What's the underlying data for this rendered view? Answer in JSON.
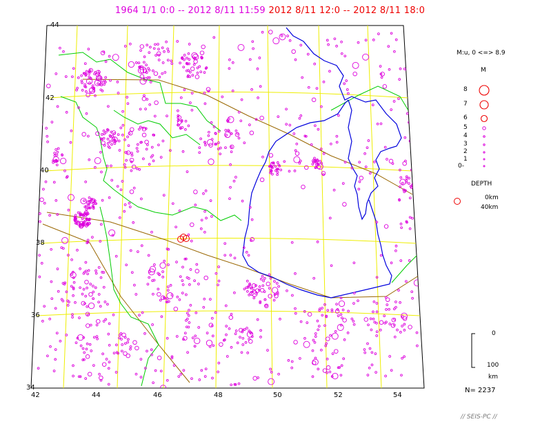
{
  "title": {
    "period_past": "1964 1/1 0:0 -- 2012 8/11 11:59",
    "period_recent": "2012 8/11 12:0 -- 2012 8/11 18:0"
  },
  "colors": {
    "past_events": "#dd00dd",
    "recent_events": "#ee0000",
    "grid": "#eeee00",
    "border_country": "#00cc00",
    "coastline": "#0000dd",
    "plate_boundary": "#996600"
  },
  "map": {
    "lat_labels": [
      "44",
      "42",
      "40",
      "38",
      "36",
      "34"
    ],
    "lon_labels": [
      "42",
      "44",
      "46",
      "48",
      "50",
      "52",
      "54"
    ]
  },
  "legend": {
    "magnitude_range": "M:u, 0 <=> 8.9",
    "magnitude_title": "M",
    "magnitudes": [
      "8",
      "7",
      "6",
      "5",
      "4",
      "3",
      "2",
      "1",
      "0-"
    ],
    "depth_title": "DEPTH",
    "depth_0": "0km",
    "depth_40": "40km",
    "depth_scale_top": "0",
    "depth_scale_bottom": "100",
    "depth_scale_unit": "km"
  },
  "event_count": "N= 2237",
  "footer": "// SEIS-PC //"
}
